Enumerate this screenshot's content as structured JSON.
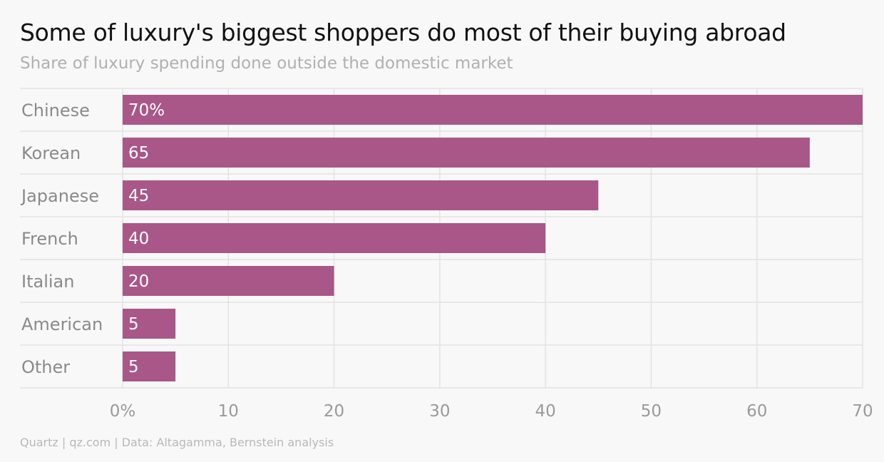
{
  "chart_data": {
    "type": "bar",
    "orientation": "horizontal",
    "title": "Some of luxury's biggest shoppers do most of their buying abroad",
    "subtitle": "Share of luxury spending done outside the domestic market",
    "categories": [
      "Chinese",
      "Korean",
      "Japanese",
      "French",
      "Italian",
      "American",
      "Other"
    ],
    "values": [
      70,
      65,
      45,
      40,
      20,
      5,
      5
    ],
    "data_labels": [
      "70%",
      "65",
      "45",
      "40",
      "20",
      "5",
      "5"
    ],
    "xlim": [
      0,
      70
    ],
    "x_ticks": [
      0,
      10,
      20,
      30,
      40,
      50,
      60,
      70
    ],
    "x_tick_labels": [
      "0%",
      "10",
      "20",
      "30",
      "40",
      "50",
      "60",
      "70"
    ],
    "grid": true,
    "bar_color": "#a85788",
    "source": "Quartz | qz.com | Data: Altagamma, Bernstein analysis"
  }
}
